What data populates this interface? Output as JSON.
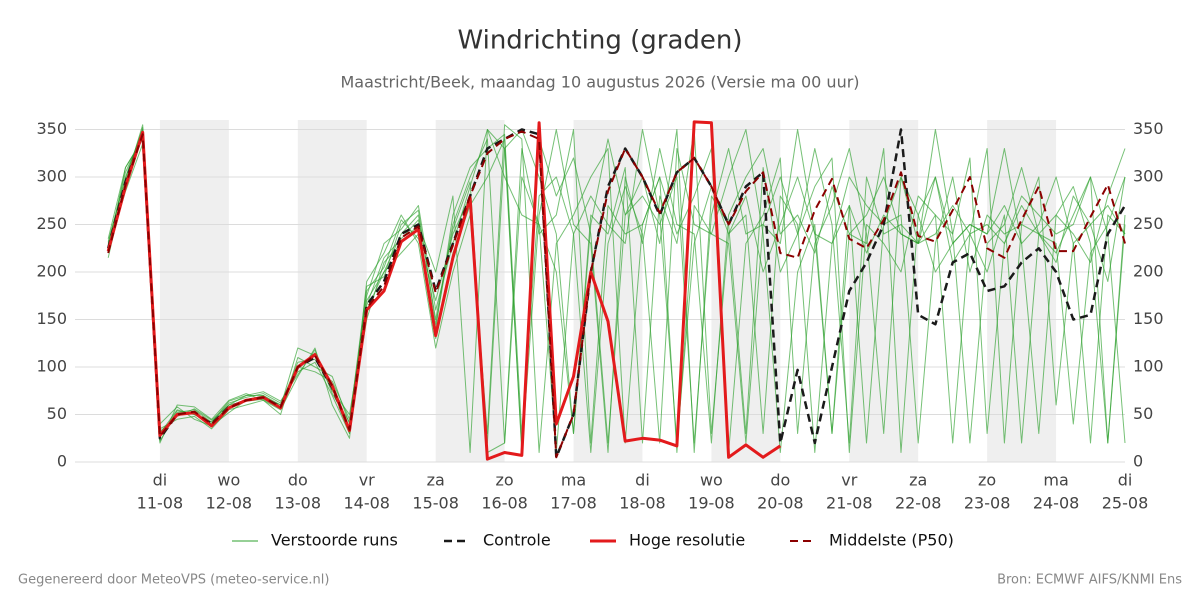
{
  "chart_data": {
    "type": "line",
    "title": "Windrichting (graden)",
    "subtitle": "Maastricht/Beek, maandag 10 augustus 2026 (Versie ma 00 uur)",
    "footer_left": "Gegenereerd door MeteoVPS (meteo-service.nl)",
    "footer_right": "Bron: ECMWF AIFS/KNMI Ens",
    "categories": [
      null,
      null,
      null,
      null,
      {
        "day": "di",
        "date": "11-08"
      },
      null,
      null,
      null,
      {
        "day": "wo",
        "date": "12-08"
      },
      null,
      null,
      null,
      {
        "day": "do",
        "date": "13-08"
      },
      null,
      null,
      null,
      {
        "day": "vr",
        "date": "14-08"
      },
      null,
      null,
      null,
      {
        "day": "za",
        "date": "15-08"
      },
      null,
      null,
      null,
      {
        "day": "zo",
        "date": "16-08"
      },
      null,
      null,
      null,
      {
        "day": "ma",
        "date": "17-08"
      },
      null,
      null,
      null,
      {
        "day": "di",
        "date": "18-08"
      },
      null,
      null,
      null,
      {
        "day": "wo",
        "date": "19-08"
      },
      null,
      null,
      null,
      {
        "day": "do",
        "date": "20-08"
      },
      null,
      null,
      null,
      {
        "day": "vr",
        "date": "21-08"
      },
      null,
      null,
      null,
      {
        "day": "za",
        "date": "22-08"
      },
      null,
      null,
      null,
      {
        "day": "zo",
        "date": "23-08"
      },
      null,
      null,
      null,
      {
        "day": "ma",
        "date": "24-08"
      },
      null,
      null,
      null,
      {
        "day": "di",
        "date": "25-08"
      }
    ],
    "ylim": [
      0,
      360
    ],
    "yticks": [
      0,
      50,
      100,
      150,
      200,
      250,
      300,
      350
    ],
    "grid": true,
    "ensemble": {
      "name": "Verstoorde runs",
      "color": "#2ca02c",
      "members": [
        [
          null,
          230,
          300,
          350,
          30,
          55,
          50,
          40,
          60,
          70,
          70,
          60,
          95,
          105,
          70,
          30,
          170,
          200,
          240,
          260,
          150,
          250,
          300,
          340,
          20,
          300,
          250,
          200,
          30,
          260,
          240,
          310,
          20,
          280,
          230,
          350,
          30,
          240,
          280,
          200,
          250,
          300,
          240,
          30,
          270,
          220,
          260,
          240,
          230,
          300,
          210,
          240,
          200,
          260,
          20,
          240,
          210,
          280,
          250,
          190,
          300
        ],
        [
          null,
          220,
          310,
          340,
          20,
          60,
          58,
          45,
          65,
          72,
          65,
          50,
          110,
          100,
          90,
          40,
          150,
          210,
          230,
          250,
          200,
          280,
          10,
          350,
          330,
          15,
          340,
          280,
          320,
          240,
          20,
          260,
          300,
          230,
          350,
          10,
          280,
          250,
          30,
          310,
          200,
          240,
          290,
          320,
          10,
          250,
          230,
          200,
          280,
          260,
          240,
          320,
          30,
          230,
          270,
          240,
          220,
          260,
          300,
          20,
          250
        ],
        [
          null,
          215,
          295,
          355,
          35,
          45,
          48,
          35,
          55,
          60,
          65,
          55,
          90,
          120,
          60,
          25,
          190,
          220,
          260,
          230,
          120,
          200,
          260,
          30,
          355,
          340,
          10,
          230,
          260,
          300,
          330,
          20,
          250,
          300,
          240,
          280,
          330,
          10,
          230,
          260,
          320,
          30,
          230,
          270,
          330,
          240,
          30,
          300,
          260,
          200,
          230,
          250,
          240,
          330,
          230,
          30,
          260,
          240,
          210,
          280,
          330
        ],
        [
          null,
          228,
          305,
          345,
          22,
          52,
          55,
          42,
          62,
          68,
          72,
          62,
          100,
          95,
          85,
          45,
          175,
          230,
          245,
          270,
          160,
          230,
          290,
          350,
          300,
          260,
          250,
          10,
          240,
          280,
          250,
          230,
          350,
          260,
          20,
          230,
          290,
          240,
          260,
          30,
          280,
          250,
          10,
          230,
          300,
          270,
          250,
          260,
          20,
          230,
          300,
          200,
          260,
          240,
          250,
          300,
          60,
          230,
          250,
          270,
          240
        ],
        [
          null,
          225,
          285,
          335,
          40,
          58,
          45,
          38,
          52,
          65,
          70,
          58,
          120,
          112,
          75,
          50,
          160,
          200,
          220,
          240,
          140,
          260,
          310,
          330,
          345,
          30,
          280,
          300,
          240,
          10,
          230,
          290,
          240,
          20,
          330,
          250,
          240,
          300,
          350,
          240,
          10,
          200,
          250,
          30,
          240,
          260,
          300,
          240,
          230,
          350,
          240,
          20,
          230,
          250,
          310,
          240,
          230,
          40,
          220,
          250,
          300
        ],
        [
          null,
          232,
          298,
          352,
          28,
          50,
          52,
          40,
          58,
          66,
          68,
          60,
          105,
          108,
          82,
          35,
          180,
          205,
          255,
          235,
          170,
          240,
          280,
          20,
          330,
          350,
          300,
          240,
          30,
          250,
          340,
          260,
          280,
          250,
          300,
          20,
          260,
          330,
          240,
          250,
          230,
          350,
          240,
          230,
          270,
          20,
          250,
          300,
          230,
          240,
          270,
          240,
          330,
          20,
          250,
          240,
          260,
          290,
          230,
          20,
          260
        ],
        [
          null,
          222,
          292,
          348,
          32,
          48,
          56,
          44,
          60,
          64,
          66,
          56,
          98,
          115,
          78,
          30,
          165,
          215,
          235,
          255,
          130,
          220,
          270,
          300,
          340,
          10,
          260,
          350,
          250,
          230,
          10,
          300,
          230,
          330,
          250,
          240,
          20,
          260,
          300,
          330,
          240,
          260,
          220,
          290,
          240,
          230,
          330,
          10,
          260,
          300,
          230,
          250,
          240,
          270,
          230,
          250,
          300,
          230,
          20,
          260,
          240
        ],
        [
          null,
          235,
          310,
          340,
          26,
          54,
          50,
          42,
          64,
          70,
          74,
          64,
          92,
          118,
          72,
          42,
          185,
          195,
          250,
          265,
          145,
          245,
          295,
          10,
          20,
          330,
          240,
          260,
          350,
          20,
          270,
          240,
          250,
          300,
          10,
          270,
          240,
          230,
          20,
          250,
          300,
          240,
          330,
          250,
          20,
          300,
          240,
          250,
          230,
          260,
          20,
          240,
          250,
          230,
          280,
          260,
          240,
          250,
          300,
          240,
          20
        ]
      ]
    },
    "series": [
      {
        "name": "Controle",
        "color": "#1a1a1a",
        "dashed": true,
        "width": 2.5,
        "values": [
          null,
          225,
          295,
          345,
          25,
          50,
          52,
          40,
          58,
          65,
          68,
          58,
          100,
          110,
          78,
          33,
          165,
          190,
          240,
          250,
          180,
          230,
          280,
          330,
          340,
          350,
          345,
          5,
          50,
          200,
          290,
          330,
          300,
          260,
          305,
          320,
          290,
          250,
          290,
          305,
          20,
          97,
          20,
          100,
          180,
          210,
          250,
          350,
          155,
          145,
          210,
          220,
          180,
          185,
          210,
          225,
          200,
          150,
          155,
          240,
          270
        ]
      },
      {
        "name": "Hoge resolutie",
        "color": "#e31a1c",
        "dashed": false,
        "width": 3,
        "values": [
          null,
          222,
          290,
          347,
          28,
          50,
          52,
          38,
          57,
          65,
          68,
          57,
          100,
          113,
          80,
          33,
          160,
          180,
          232,
          245,
          133,
          215,
          278,
          3,
          10,
          7,
          357,
          40,
          90,
          200,
          148,
          22,
          25,
          23,
          17,
          358,
          357,
          5,
          18,
          5,
          17,
          null,
          null,
          null,
          null,
          null,
          null,
          null,
          null,
          null,
          null,
          null,
          null,
          null,
          null,
          null,
          null,
          null,
          null,
          null,
          null
        ]
      },
      {
        "name": "Middelste (P50)",
        "color": "#8b0000",
        "dashed": true,
        "width": 2,
        "values": [
          null,
          220,
          292,
          345,
          27,
          50,
          53,
          40,
          57,
          65,
          68,
          58,
          100,
          112,
          80,
          34,
          162,
          185,
          236,
          248,
          178,
          228,
          280,
          325,
          340,
          348,
          340,
          5,
          50,
          200,
          285,
          330,
          300,
          262,
          305,
          320,
          290,
          250,
          285,
          305,
          220,
          215,
          265,
          298,
          235,
          225,
          255,
          305,
          238,
          232,
          265,
          300,
          225,
          215,
          255,
          290,
          222,
          222,
          258,
          292,
          230
        ]
      }
    ]
  }
}
